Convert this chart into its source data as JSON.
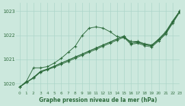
{
  "title": "Graphe pression niveau de la mer (hPa)",
  "background_color": "#cce8dd",
  "grid_color": "#aad4c8",
  "line_color": "#2d6b3c",
  "xlim": [
    -0.5,
    23
  ],
  "ylim": [
    1019.7,
    1023.35
  ],
  "yticks": [
    1020,
    1021,
    1022,
    1023
  ],
  "xticks": [
    0,
    1,
    2,
    3,
    4,
    5,
    6,
    7,
    8,
    9,
    10,
    11,
    12,
    13,
    14,
    15,
    16,
    17,
    18,
    19,
    20,
    21,
    22,
    23
  ],
  "line1": [
    1019.85,
    1020.1,
    1020.65,
    1020.65,
    1020.7,
    1020.85,
    1021.05,
    1021.3,
    1021.55,
    1022.0,
    1022.3,
    1022.35,
    1022.3,
    1022.15,
    1021.95,
    1021.9,
    1021.75,
    1021.75,
    1021.65,
    1021.6,
    1021.85,
    1022.15,
    1022.6,
    1023.0
  ],
  "line2": [
    1019.85,
    1020.05,
    1020.25,
    1020.5,
    1020.6,
    1020.72,
    1020.85,
    1020.97,
    1021.1,
    1021.22,
    1021.35,
    1021.47,
    1021.6,
    1021.72,
    1021.85,
    1021.97,
    1021.68,
    1021.72,
    1021.62,
    1021.57,
    1021.82,
    1022.1,
    1022.55,
    1023.0
  ],
  "line3": [
    1019.85,
    1020.05,
    1020.25,
    1020.5,
    1020.6,
    1020.72,
    1020.85,
    1020.97,
    1021.1,
    1021.22,
    1021.35,
    1021.47,
    1021.6,
    1021.72,
    1021.85,
    1021.97,
    1021.68,
    1021.72,
    1021.62,
    1021.57,
    1021.82,
    1022.1,
    1022.55,
    1023.0
  ],
  "line4": [
    1019.85,
    1020.05,
    1020.22,
    1020.47,
    1020.57,
    1020.68,
    1020.8,
    1020.92,
    1021.05,
    1021.17,
    1021.3,
    1021.42,
    1021.55,
    1021.67,
    1021.8,
    1021.92,
    1021.63,
    1021.67,
    1021.57,
    1021.52,
    1021.77,
    1022.05,
    1022.5,
    1022.95
  ]
}
